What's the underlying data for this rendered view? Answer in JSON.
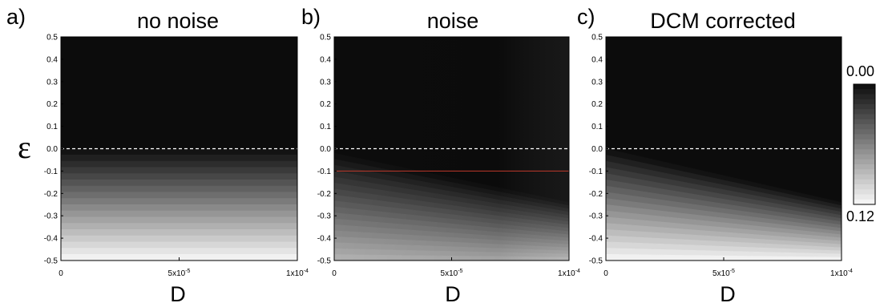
{
  "panels": [
    {
      "letter": "a)",
      "title": "no noise"
    },
    {
      "letter": "b)",
      "title": "noise"
    },
    {
      "letter": "c)",
      "title": "DCM corrected"
    }
  ],
  "axis_labels": {
    "y": "ε",
    "x": "D"
  },
  "colorbar": {
    "top_label": "0.00",
    "bottom_label": "0.12",
    "min": 0.0,
    "max": 0.12,
    "colormap": "black-to-white"
  },
  "colors": {
    "dashed_line": "#ffffff",
    "threshold_line": "#c0392b"
  },
  "chart_data": [
    {
      "type": "heatmap",
      "title": "no noise",
      "xlabel": "D",
      "ylabel": "ε",
      "xlim": [
        0,
        0.0001
      ],
      "ylim": [
        -0.5,
        0.5
      ],
      "xticks": [
        0,
        5e-05,
        0.0001
      ],
      "xtick_labels": [
        "0",
        "5x10-5",
        "1x10-4"
      ],
      "yticks": [
        0.5,
        0.4,
        0.3,
        0.2,
        0.1,
        0.0,
        -0.1,
        -0.2,
        -0.3,
        -0.4,
        -0.5
      ],
      "ytick_labels": [
        "0.5",
        "0.4",
        "0.3",
        "0.2",
        "0.1",
        "0.0",
        "-0.1",
        "-0.2",
        "-0.3",
        "-0.4",
        "-0.5"
      ],
      "dashed_line_y": 0.0,
      "boundary": {
        "at_x0": 0.0,
        "at_xmax": 0.0
      },
      "value_at_bottom": 0.12
    },
    {
      "type": "heatmap",
      "title": "noise",
      "xlabel": "D",
      "ylabel": "ε",
      "xlim": [
        0,
        0.0001
      ],
      "ylim": [
        -0.5,
        0.5
      ],
      "xticks": [
        0,
        5e-05,
        0.0001
      ],
      "xtick_labels": [
        "0",
        "5x10-5",
        "1x10-4"
      ],
      "yticks": [
        0.5,
        0.4,
        0.3,
        0.2,
        0.1,
        0.0,
        -0.1,
        -0.2,
        -0.3,
        -0.4,
        -0.5
      ],
      "ytick_labels": [
        "0.5",
        "0.4",
        "0.3",
        "0.2",
        "0.1",
        "0.0",
        "-0.1",
        "-0.2",
        "-0.3",
        "-0.4",
        "-0.5"
      ],
      "dashed_line_y": 0.0,
      "red_line_y": -0.1,
      "boundary": {
        "at_x0": -0.02,
        "at_xmax": -0.24
      },
      "value_at_bottom": 0.085
    },
    {
      "type": "heatmap",
      "title": "DCM corrected",
      "xlabel": "D",
      "ylabel": "ε",
      "xlim": [
        0,
        0.0001
      ],
      "ylim": [
        -0.5,
        0.5
      ],
      "xticks": [
        0,
        5e-05,
        0.0001
      ],
      "xtick_labels": [
        "0",
        "5x10-5",
        "1x10-4"
      ],
      "yticks": [
        0.5,
        0.4,
        0.3,
        0.2,
        0.1,
        0.0,
        -0.1,
        -0.2,
        -0.3,
        -0.4,
        -0.5
      ],
      "ytick_labels": [
        "0.5",
        "0.4",
        "0.3",
        "0.2",
        "0.1",
        "0.0",
        "-0.1",
        "-0.2",
        "-0.3",
        "-0.4",
        "-0.5"
      ],
      "dashed_line_y": 0.0,
      "boundary": {
        "at_x0": 0.0,
        "at_xmax": -0.24
      },
      "value_at_bottom": 0.12
    }
  ]
}
